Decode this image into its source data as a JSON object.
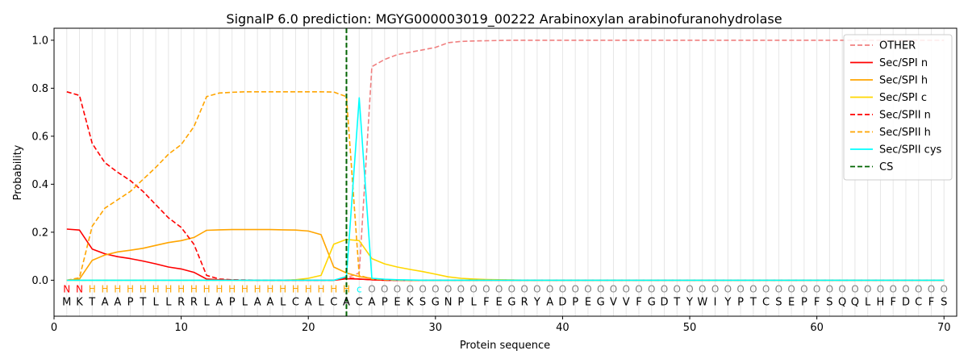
{
  "chart_data": {
    "type": "line",
    "title": "SignalP 6.0 prediction: MGYG000003019_00222 Arabinoxylan arabinofuranohydrolase",
    "xlabel": "Protein sequence",
    "ylabel": "Probability",
    "xlim": [
      0,
      71
    ],
    "ylim": [
      -0.15,
      1.05
    ],
    "xticks": [
      "0",
      "10",
      "20",
      "30",
      "40",
      "50",
      "60",
      "70"
    ],
    "yticks": [
      "0.0",
      "0.2",
      "0.4",
      "0.6",
      "0.8",
      "1.0"
    ],
    "grid": "vertical lines at every residue",
    "legend_position": "top-right",
    "cleavage_site_x": 23,
    "sequence": [
      "M",
      "K",
      "T",
      "A",
      "A",
      "P",
      "T",
      "L",
      "L",
      "R",
      "R",
      "L",
      "A",
      "P",
      "L",
      "A",
      "A",
      "L",
      "C",
      "A",
      "L",
      "C",
      "A",
      "C",
      "A",
      "P",
      "E",
      "K",
      "S",
      "G",
      "N",
      "P",
      "L",
      "F",
      "E",
      "G",
      "R",
      "Y",
      "A",
      "D",
      "P",
      "E",
      "G",
      "V",
      "V",
      "F",
      "G",
      "D",
      "T",
      "Y",
      "W",
      "I",
      "Y",
      "P",
      "T",
      "C",
      "S",
      "E",
      "P",
      "F",
      "S",
      "Q",
      "Q",
      "L",
      "H",
      "F",
      "D",
      "C",
      "F",
      "S"
    ],
    "region_labels": [
      "N",
      "N",
      "H",
      "H",
      "H",
      "H",
      "H",
      "H",
      "H",
      "H",
      "H",
      "H",
      "H",
      "H",
      "H",
      "H",
      "H",
      "H",
      "H",
      "H",
      "H",
      "H",
      "H",
      "C",
      "O",
      "O",
      "O",
      "O",
      "O",
      "O",
      "O",
      "O",
      "O",
      "O",
      "O",
      "O",
      "O",
      "O",
      "O",
      "O",
      "O",
      "O",
      "O",
      "O",
      "O",
      "O",
      "O",
      "O",
      "O",
      "O",
      "O",
      "O",
      "O",
      "O",
      "O",
      "O",
      "O",
      "O",
      "O",
      "O",
      "O",
      "O",
      "O",
      "O",
      "O",
      "O",
      "O",
      "O",
      "O",
      "O"
    ],
    "region_colors": {
      "N": "#ff0000",
      "H": "#ffa500",
      "C": "#00ffff",
      "O": "#808080"
    },
    "series": [
      {
        "name": "OTHER",
        "color": "#f08080",
        "dash": true,
        "values": [
          0,
          0,
          0,
          0,
          0,
          0,
          0,
          0,
          0,
          0,
          0,
          0,
          0,
          0,
          0,
          0,
          0,
          0,
          0,
          0,
          0,
          0,
          0.01,
          0.03,
          0.89,
          0.92,
          0.94,
          0.95,
          0.96,
          0.97,
          0.99,
          0.995,
          0.997,
          0.998,
          0.999,
          1,
          1,
          1,
          1,
          1,
          1,
          1,
          1,
          1,
          1,
          1,
          1,
          1,
          1,
          1,
          1,
          1,
          1,
          1,
          1,
          1,
          1,
          1,
          1,
          1,
          1,
          1,
          1,
          1,
          1,
          1,
          1,
          1,
          1,
          1
        ]
      },
      {
        "name": "Sec/SPI n",
        "color": "#ff0000",
        "dash": false,
        "values": [
          0.213,
          0.209,
          0.13,
          0.11,
          0.098,
          0.09,
          0.08,
          0.068,
          0.055,
          0.047,
          0.033,
          0.005,
          0.002,
          0.001,
          0,
          0,
          0,
          0,
          0,
          0,
          0,
          0,
          0.006,
          0.005,
          0.002,
          0,
          0,
          0,
          0,
          0,
          0,
          0,
          0,
          0,
          0,
          0,
          0,
          0,
          0,
          0,
          0,
          0,
          0,
          0,
          0,
          0,
          0,
          0,
          0,
          0,
          0,
          0,
          0,
          0,
          0,
          0,
          0,
          0,
          0,
          0,
          0,
          0,
          0,
          0,
          0,
          0,
          0,
          0,
          0,
          0
        ]
      },
      {
        "name": "Sec/SPI h",
        "color": "#ffa500",
        "dash": false,
        "values": [
          0,
          0.005,
          0.083,
          0.105,
          0.118,
          0.125,
          0.133,
          0.145,
          0.157,
          0.165,
          0.178,
          0.208,
          0.21,
          0.211,
          0.211,
          0.211,
          0.211,
          0.21,
          0.209,
          0.205,
          0.19,
          0.055,
          0.03,
          0.015,
          0.008,
          0.003,
          0.001,
          0,
          0,
          0,
          0,
          0,
          0,
          0,
          0,
          0,
          0,
          0,
          0,
          0,
          0,
          0,
          0,
          0,
          0,
          0,
          0,
          0,
          0,
          0,
          0,
          0,
          0,
          0,
          0,
          0,
          0,
          0,
          0,
          0,
          0,
          0,
          0,
          0,
          0,
          0,
          0,
          0,
          0,
          0
        ]
      },
      {
        "name": "Sec/SPI c",
        "color": "#ffd700",
        "dash": false,
        "values": [
          0,
          0,
          0,
          0,
          0,
          0,
          0,
          0,
          0,
          0,
          0,
          0,
          0,
          0,
          0,
          0,
          0,
          0,
          0.002,
          0.008,
          0.02,
          0.15,
          0.17,
          0.165,
          0.09,
          0.068,
          0.055,
          0.045,
          0.036,
          0.025,
          0.014,
          0.008,
          0.005,
          0.003,
          0.002,
          0.001,
          0,
          0,
          0,
          0,
          0,
          0,
          0,
          0,
          0,
          0,
          0,
          0,
          0,
          0,
          0,
          0,
          0,
          0,
          0,
          0,
          0,
          0,
          0,
          0,
          0,
          0,
          0,
          0,
          0,
          0,
          0,
          0,
          0,
          0
        ]
      },
      {
        "name": "Sec/SPII n",
        "color": "#ff0000",
        "dash": true,
        "values": [
          0.785,
          0.77,
          0.57,
          0.49,
          0.45,
          0.415,
          0.37,
          0.315,
          0.26,
          0.22,
          0.15,
          0.02,
          0.005,
          0.002,
          0.001,
          0,
          0,
          0,
          0,
          0,
          0,
          0,
          0.01,
          0.005,
          0.002,
          0,
          0,
          0,
          0,
          0,
          0,
          0,
          0,
          0,
          0,
          0,
          0,
          0,
          0,
          0,
          0,
          0,
          0,
          0,
          0,
          0,
          0,
          0,
          0,
          0,
          0,
          0,
          0,
          0,
          0,
          0,
          0,
          0,
          0,
          0,
          0,
          0,
          0,
          0,
          0,
          0,
          0,
          0,
          0,
          0
        ]
      },
      {
        "name": "Sec/SPII h",
        "color": "#ffa500",
        "dash": true,
        "values": [
          0,
          0.01,
          0.225,
          0.3,
          0.335,
          0.37,
          0.42,
          0.47,
          0.525,
          0.565,
          0.64,
          0.765,
          0.78,
          0.783,
          0.785,
          0.785,
          0.785,
          0.785,
          0.785,
          0.785,
          0.785,
          0.784,
          0.765,
          0.02,
          0.005,
          0.002,
          0,
          0,
          0,
          0,
          0,
          0,
          0,
          0,
          0,
          0,
          0,
          0,
          0,
          0,
          0,
          0,
          0,
          0,
          0,
          0,
          0,
          0,
          0,
          0,
          0,
          0,
          0,
          0,
          0,
          0,
          0,
          0,
          0,
          0,
          0,
          0,
          0,
          0,
          0,
          0,
          0,
          0,
          0,
          0
        ]
      },
      {
        "name": "Sec/SPII cys",
        "color": "#00ffff",
        "dash": false,
        "values": [
          0,
          0,
          0,
          0,
          0,
          0,
          0,
          0,
          0,
          0,
          0,
          0,
          0,
          0,
          0,
          0,
          0,
          0,
          0,
          0,
          0,
          0,
          0.015,
          0.76,
          0.008,
          0.004,
          0.002,
          0.001,
          0,
          0,
          0,
          0,
          0,
          0,
          0,
          0,
          0,
          0,
          0,
          0,
          0,
          0,
          0,
          0,
          0,
          0,
          0,
          0,
          0,
          0,
          0,
          0,
          0,
          0,
          0,
          0,
          0,
          0,
          0,
          0,
          0,
          0,
          0,
          0,
          0,
          0,
          0,
          0,
          0,
          0
        ]
      },
      {
        "name": "CS",
        "color": "#006400",
        "dash": true,
        "values": []
      }
    ]
  }
}
